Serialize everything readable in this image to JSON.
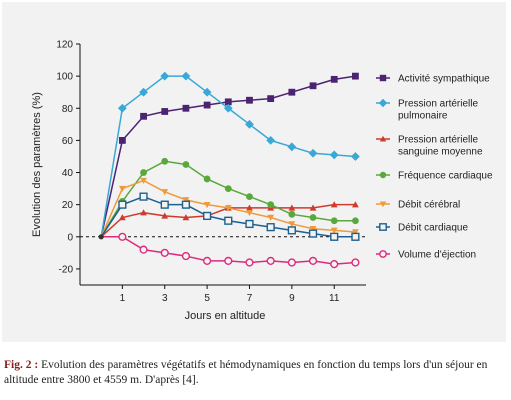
{
  "chart_data": {
    "type": "line",
    "ylabel": "Evolution des paramètres (%)",
    "xlabel": "Jours en altitude",
    "xlim": [
      -1,
      12.5
    ],
    "ylim": [
      -30,
      120
    ],
    "xticks": [
      1,
      3,
      5,
      7,
      9,
      11
    ],
    "yticks": [
      -20,
      0,
      20,
      40,
      60,
      80,
      100,
      120
    ],
    "baseline": 0,
    "grid": false,
    "legend_position": "right",
    "x": [
      0,
      1,
      2,
      3,
      4,
      5,
      6,
      7,
      8,
      9,
      10,
      11,
      12
    ],
    "series": [
      {
        "name": "Activité sympathique",
        "color": "#4b2370",
        "marker": "square",
        "values": [
          0,
          60,
          75,
          78,
          80,
          82,
          84,
          85,
          86,
          90,
          94,
          98,
          100
        ]
      },
      {
        "name": "Pression artérielle pulmonaire",
        "color": "#3aa8d6",
        "marker": "diamond",
        "values": [
          0,
          80,
          90,
          100,
          100,
          90,
          80,
          70,
          60,
          56,
          52,
          51,
          50
        ]
      },
      {
        "name": "Pression artérielle sanguine moyenne",
        "color": "#d03a2c",
        "marker": "triangle",
        "values": [
          0,
          12,
          15,
          13,
          12,
          13,
          18,
          18,
          18,
          18,
          18,
          20,
          20
        ]
      },
      {
        "name": "Fréquence cardiaque",
        "color": "#5aa83c",
        "marker": "circle",
        "values": [
          0,
          22,
          40,
          47,
          45,
          36,
          30,
          25,
          20,
          14,
          12,
          10,
          10
        ]
      },
      {
        "name": "Débit cérébral",
        "color": "#f09a3a",
        "marker": "triangle-down",
        "values": [
          0,
          30,
          35,
          28,
          23,
          20,
          18,
          15,
          12,
          8,
          5,
          4,
          3
        ]
      },
      {
        "name": "Débit cardiaque",
        "color": "#1d5f8e",
        "marker": "open-square",
        "values": [
          0,
          20,
          25,
          20,
          20,
          13,
          10,
          8,
          6,
          4,
          2,
          0,
          0
        ]
      },
      {
        "name": "Volume d'éjection",
        "color": "#dd2a7b",
        "marker": "open-circle",
        "values": [
          0,
          0,
          -8,
          -10,
          -12,
          -15,
          -15,
          -16,
          -15,
          -16,
          -15,
          -17,
          -16
        ]
      }
    ]
  },
  "caption": {
    "label": "Fig. 2 :",
    "text": "Evolution des paramètres végétatifs et hémodynamiques en fonction du temps lors d'un séjour en altitude entre 3800 et 4559 m. D'après [4]."
  }
}
